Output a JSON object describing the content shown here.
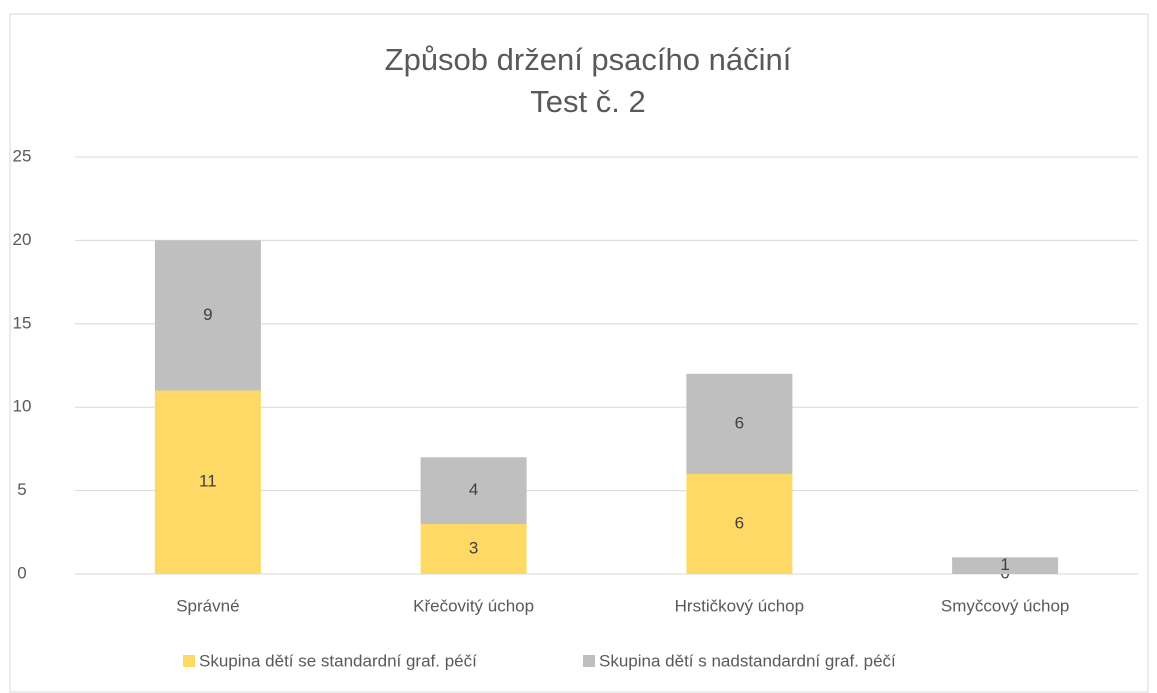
{
  "chart_data": {
    "type": "stacked_bar",
    "title": "Způsob držení psacího náčiní",
    "subtitle": "Test č. 2",
    "categories": [
      "Správné",
      "Křečovitý úchop",
      "Hrstičkový úchop",
      "Smyčcový úchop"
    ],
    "series": [
      {
        "name": "Skupina dětí se standardní graf. péčí",
        "color": "#FFD966",
        "values": [
          11,
          3,
          6,
          0
        ]
      },
      {
        "name": "Skupina dětí s nadstandardní graf. péčí",
        "color": "#BFBFBF",
        "values": [
          9,
          4,
          6,
          1
        ]
      }
    ],
    "ylim": [
      0,
      25
    ],
    "yticks": [
      0,
      5,
      10,
      15,
      20,
      25
    ],
    "grid": true,
    "legend": "bottom"
  }
}
